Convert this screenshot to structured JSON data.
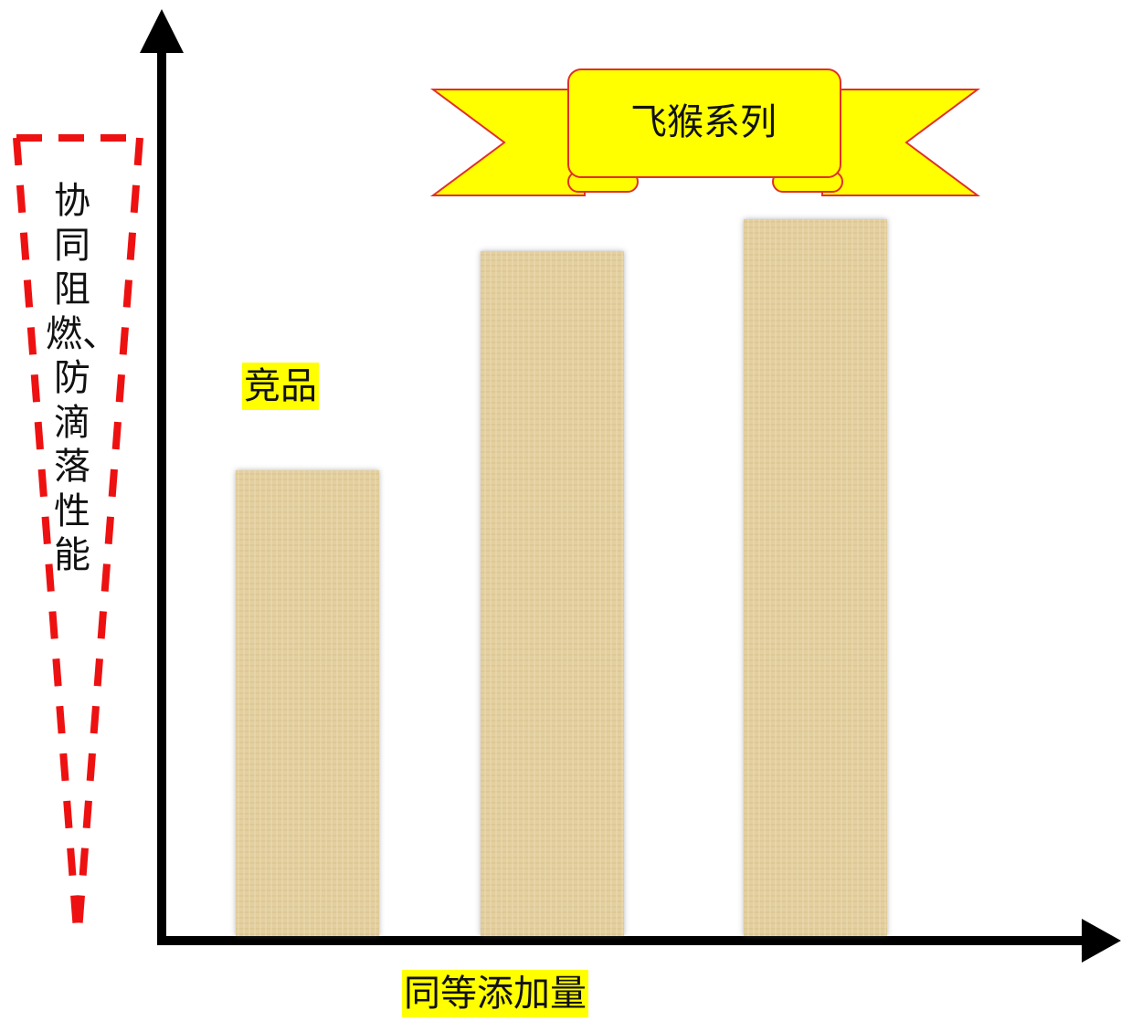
{
  "chart_data": {
    "type": "bar",
    "categories": [
      "竞品",
      "",
      ""
    ],
    "values": [
      510,
      750,
      785
    ],
    "ylim": [
      0,
      1000
    ],
    "grid": false,
    "title": "",
    "xlabel": "同等添加量",
    "ylabel": "协同阻燃、防滴落性能",
    "banner": "飞猴系列",
    "bar_label": "竞品",
    "colors": {
      "bar": "#e3cf9f",
      "axis": "#000000",
      "banner_fill": "#ffff00",
      "banner_stroke": "#e0302a",
      "dash": "#ee1111",
      "highlight": "#ffff00"
    }
  }
}
